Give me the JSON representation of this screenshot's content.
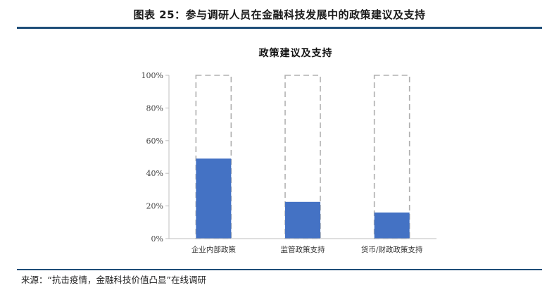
{
  "figure": {
    "title": "图表 25：参与调研人员在金融科技发展中的政策建议及支持"
  },
  "source_note": "来源：“抗击疫情，金融科技价值凸显”在线调研",
  "chart_data": {
    "type": "bar",
    "title": "政策建议及支持",
    "categories": [
      "企业内部政策",
      "监管政策支持",
      "货币/财政政策支持"
    ],
    "series": [
      {
        "values": [
          49,
          22.5,
          16
        ]
      }
    ],
    "background_bar_value": 100,
    "ylim": [
      0,
      100
    ],
    "yticks": [
      0,
      20,
      40,
      60,
      80,
      100
    ],
    "ytick_labels": [
      "0%",
      "20%",
      "40%",
      "60%",
      "80%",
      "100%"
    ],
    "grid": false,
    "legend": "none",
    "colors": {
      "bar": "#4472c4",
      "background_bar_outline": "#b0b0b0",
      "axis": "#bfbfbf",
      "rule": "#1f4e79"
    }
  }
}
